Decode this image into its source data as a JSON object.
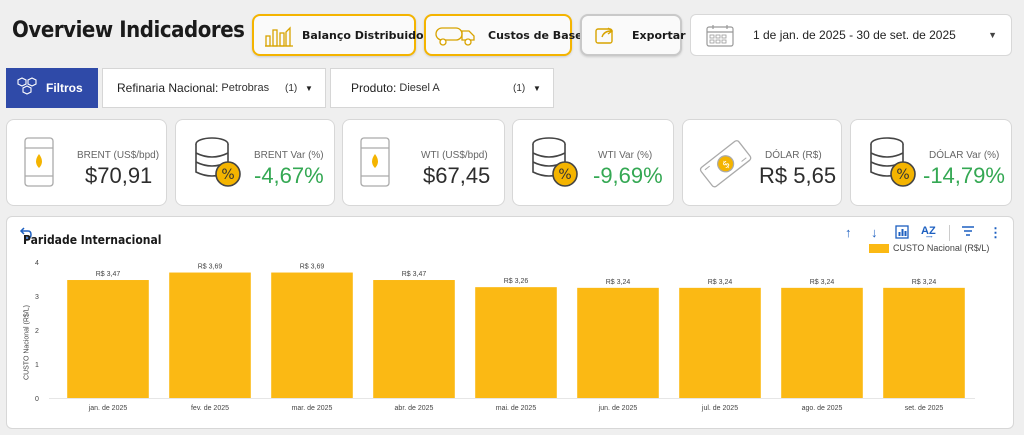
{
  "header": {
    "title": "Overview Indicadores",
    "balanco_label": "Balanço Distribuidoras",
    "custos_label": "Custos de Base",
    "exportar_label": "Exportar",
    "date_range": "1 de jan. de 2025 - 30 de set. de 2025"
  },
  "filters": {
    "button_label": "Filtros",
    "refinaria": {
      "key": "Refinaria Nacional:",
      "value": "Petrobras",
      "count": "(1)"
    },
    "produto": {
      "key": "Produto:",
      "value": "Diesel A",
      "count": "(1)"
    }
  },
  "kpis": [
    {
      "label": "BRENT (US$/bpd)",
      "value": "$70,91",
      "tone": "dark",
      "icon": "oil-barrel-icon"
    },
    {
      "label": "BRENT Var (%)",
      "value": "-4,67%",
      "tone": "green",
      "icon": "coins-percent-icon"
    },
    {
      "label": "WTI (US$/bpd)",
      "value": "$67,45",
      "tone": "dark",
      "icon": "oil-barrel-icon"
    },
    {
      "label": "WTI Var (%)",
      "value": "-9,69%",
      "tone": "green",
      "icon": "coins-percent-icon"
    },
    {
      "label": "DÓLAR (R$)",
      "value": "R$ 5,65",
      "tone": "dark",
      "icon": "money-icon"
    },
    {
      "label": "DÓLAR Var (%)",
      "value": "-14,79%",
      "tone": "green",
      "icon": "coins-percent-icon"
    }
  ],
  "colors": {
    "accent": "#f4b400",
    "bar": "#fbb914",
    "filter_blue": "#2f4aa8",
    "positive": "#34a853"
  },
  "chart": {
    "title": "Paridade Internacional",
    "legend": "CUSTO Nacional (R$/L)",
    "ylabel": "CUSTO Nacional (R$/L)"
  },
  "chart_data": {
    "type": "bar",
    "title": "Paridade Internacional",
    "categories": [
      "jan. de 2025",
      "fev. de 2025",
      "mar. de 2025",
      "abr. de 2025",
      "mai. de 2025",
      "jun. de 2025",
      "jul. de 2025",
      "ago. de 2025",
      "set. de 2025"
    ],
    "series": [
      {
        "name": "CUSTO Nacional (R$/L)",
        "values": [
          3.47,
          3.69,
          3.69,
          3.47,
          3.26,
          3.24,
          3.24,
          3.24,
          3.24
        ]
      }
    ],
    "data_labels": [
      "R$ 3,47",
      "R$ 3,69",
      "R$ 3,69",
      "R$ 3,47",
      "R$ 3,26",
      "R$ 3,24",
      "R$ 3,24",
      "R$ 3,24",
      "R$ 3,24"
    ],
    "ylabel": "CUSTO Nacional (R$/L)",
    "ylim": [
      0,
      4
    ],
    "yticks": [
      0,
      1,
      2,
      3,
      4
    ],
    "legend_position": "top-right",
    "grid": false
  }
}
